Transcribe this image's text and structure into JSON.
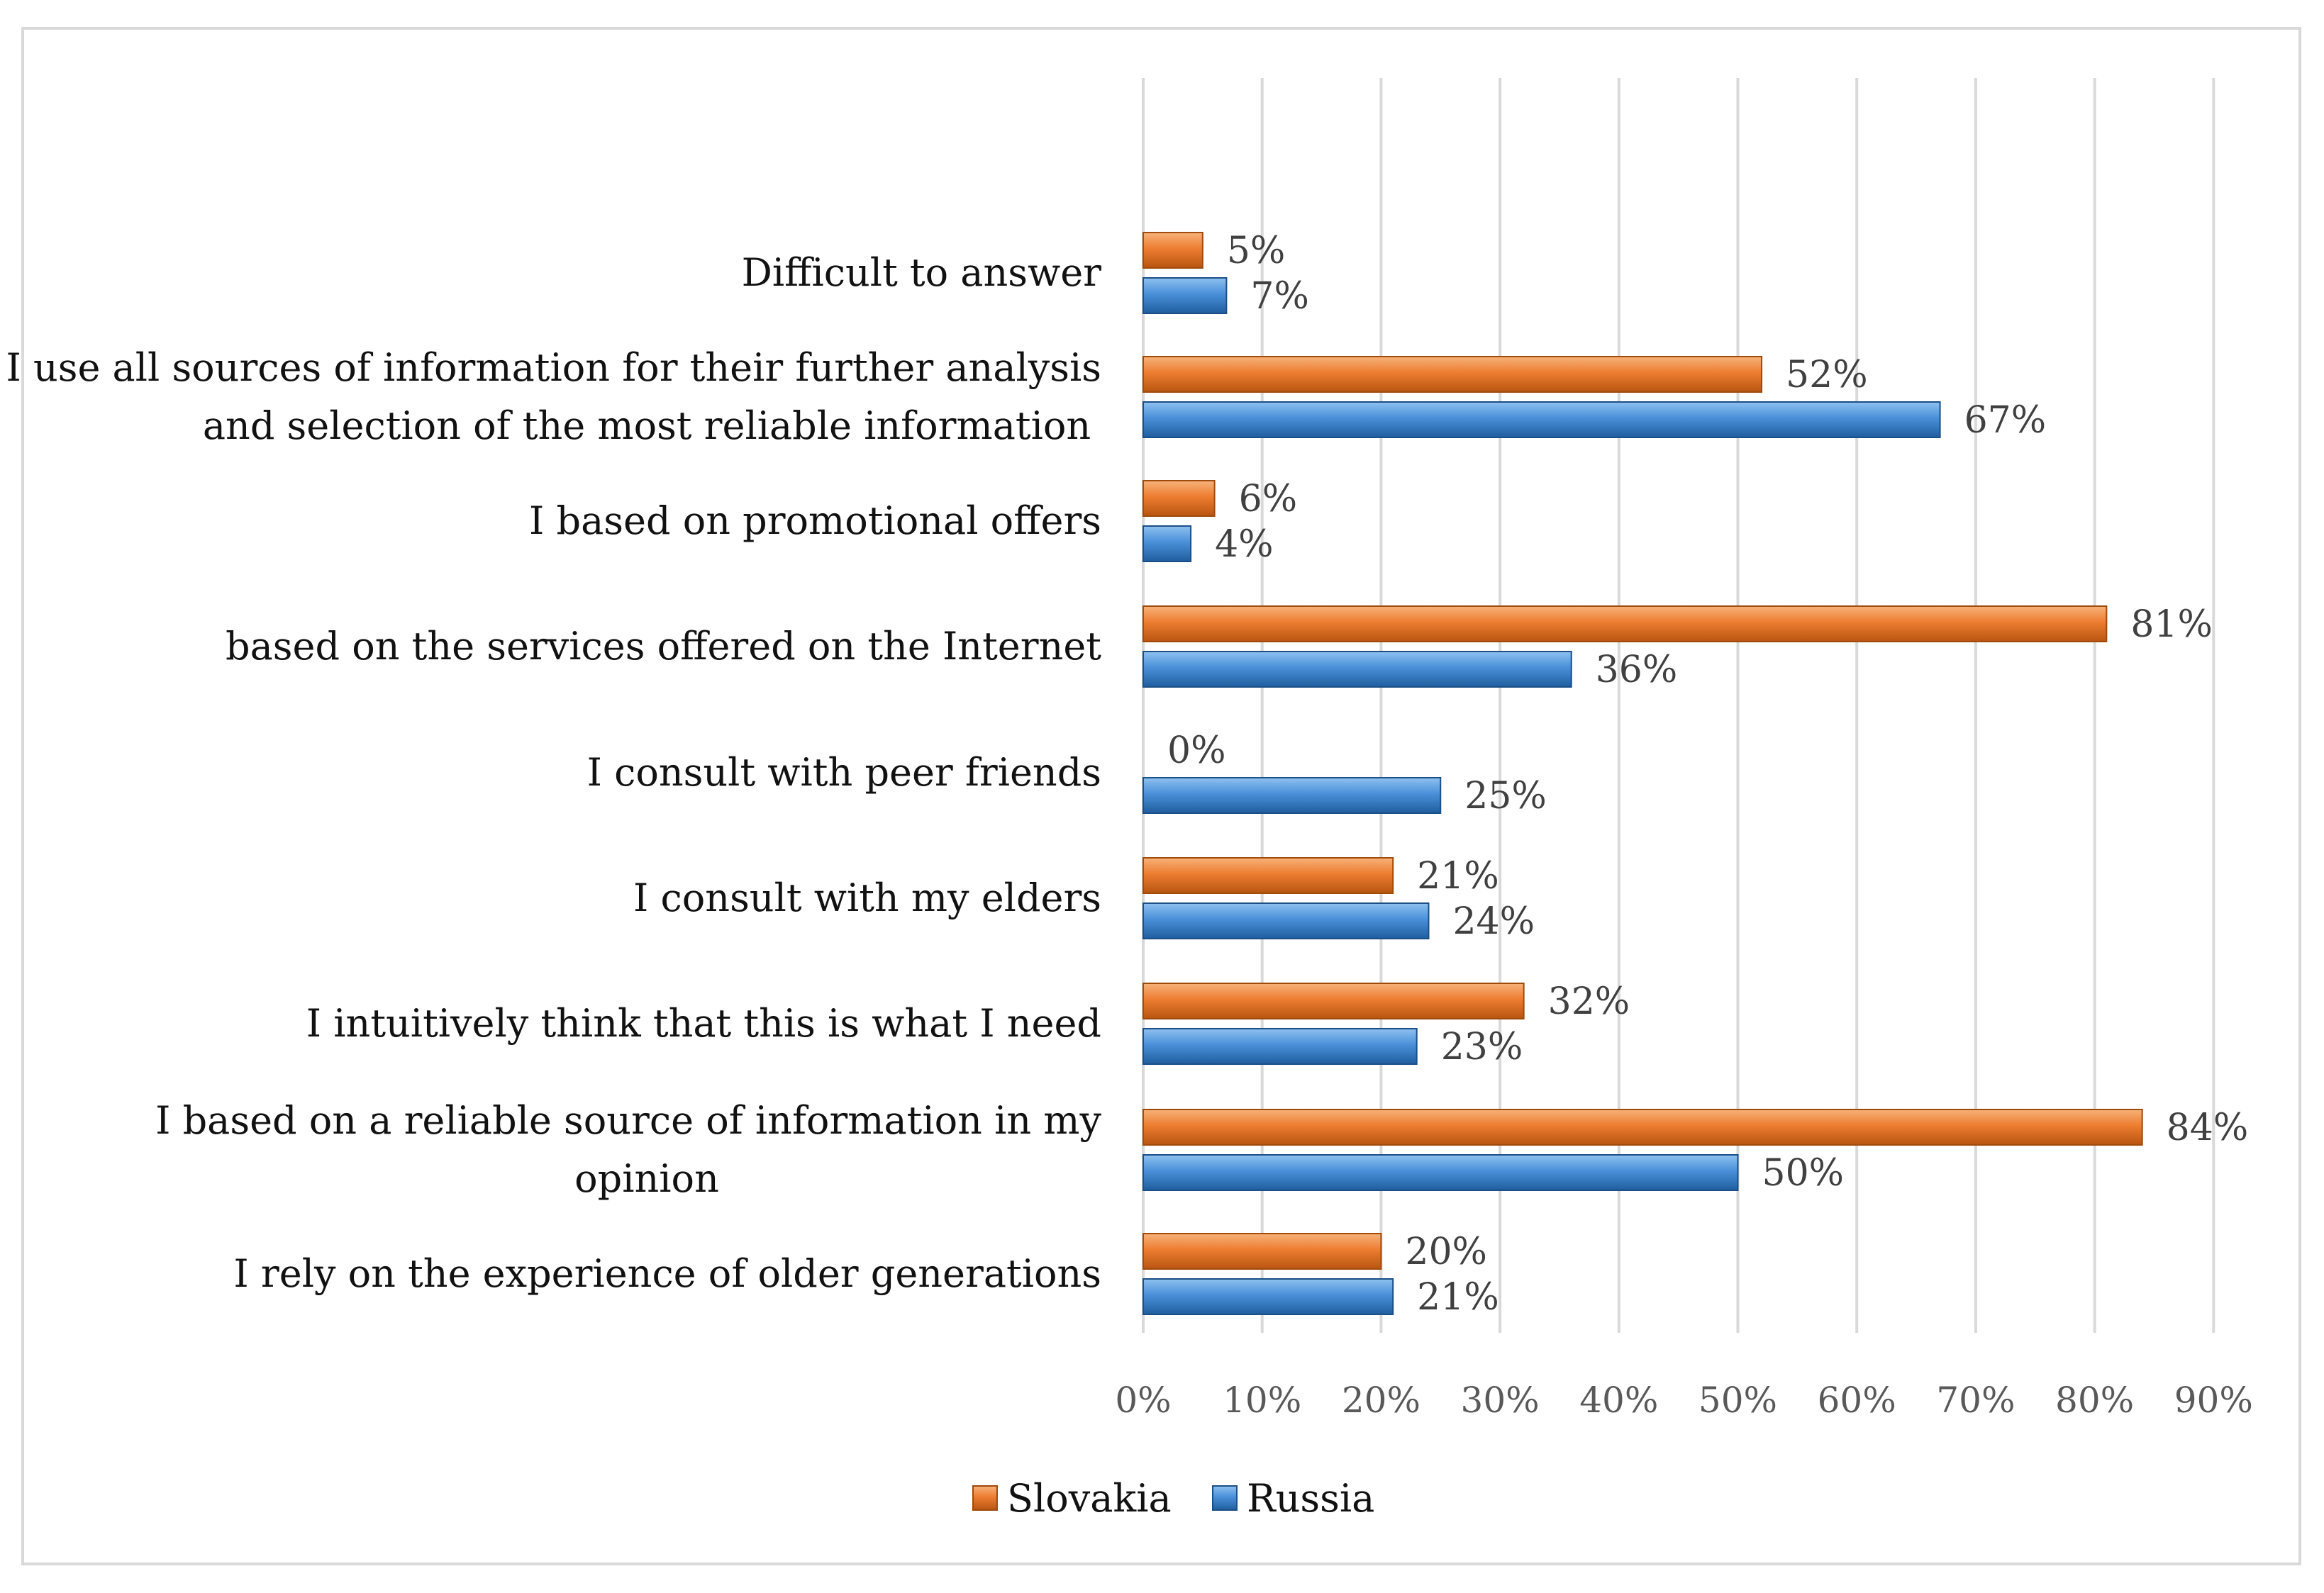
{
  "chart_data": {
    "type": "bar",
    "orientation": "horizontal",
    "title": "",
    "xlabel": "",
    "ylabel": "",
    "xlim": [
      0,
      90
    ],
    "x_ticks": [
      "0%",
      "10%",
      "20%",
      "30%",
      "40%",
      "50%",
      "60%",
      "70%",
      "80%",
      "90%"
    ],
    "grid": true,
    "legend_position": "bottom",
    "categories": [
      [
        "Difficult to answer"
      ],
      [
        "I use all sources of information for their further analysis",
        "and selection of the most reliable information"
      ],
      [
        "I based on promotional offers"
      ],
      [
        "based on the services offered on the Internet"
      ],
      [
        "I consult with peer friends"
      ],
      [
        "I consult with my elders"
      ],
      [
        "I intuitively think that this is what I need"
      ],
      [
        "I based on a reliable source of information in my",
        "opinion"
      ],
      [
        "I rely on the experience of older generations"
      ]
    ],
    "series": [
      {
        "name": "Slovakia",
        "color": "#ED7D31",
        "values": [
          5,
          52,
          6,
          81,
          0,
          21,
          32,
          84,
          20
        ],
        "labels": [
          "5%",
          "52%",
          "6%",
          "81%",
          "0%",
          "21%",
          "32%",
          "84%",
          "20%"
        ]
      },
      {
        "name": "Russia",
        "color": "#4A90D9",
        "values": [
          7,
          67,
          4,
          36,
          25,
          24,
          23,
          50,
          21
        ],
        "labels": [
          "7%",
          "67%",
          "4%",
          "36%",
          "25%",
          "24%",
          "23%",
          "50%",
          "21%"
        ]
      }
    ]
  }
}
